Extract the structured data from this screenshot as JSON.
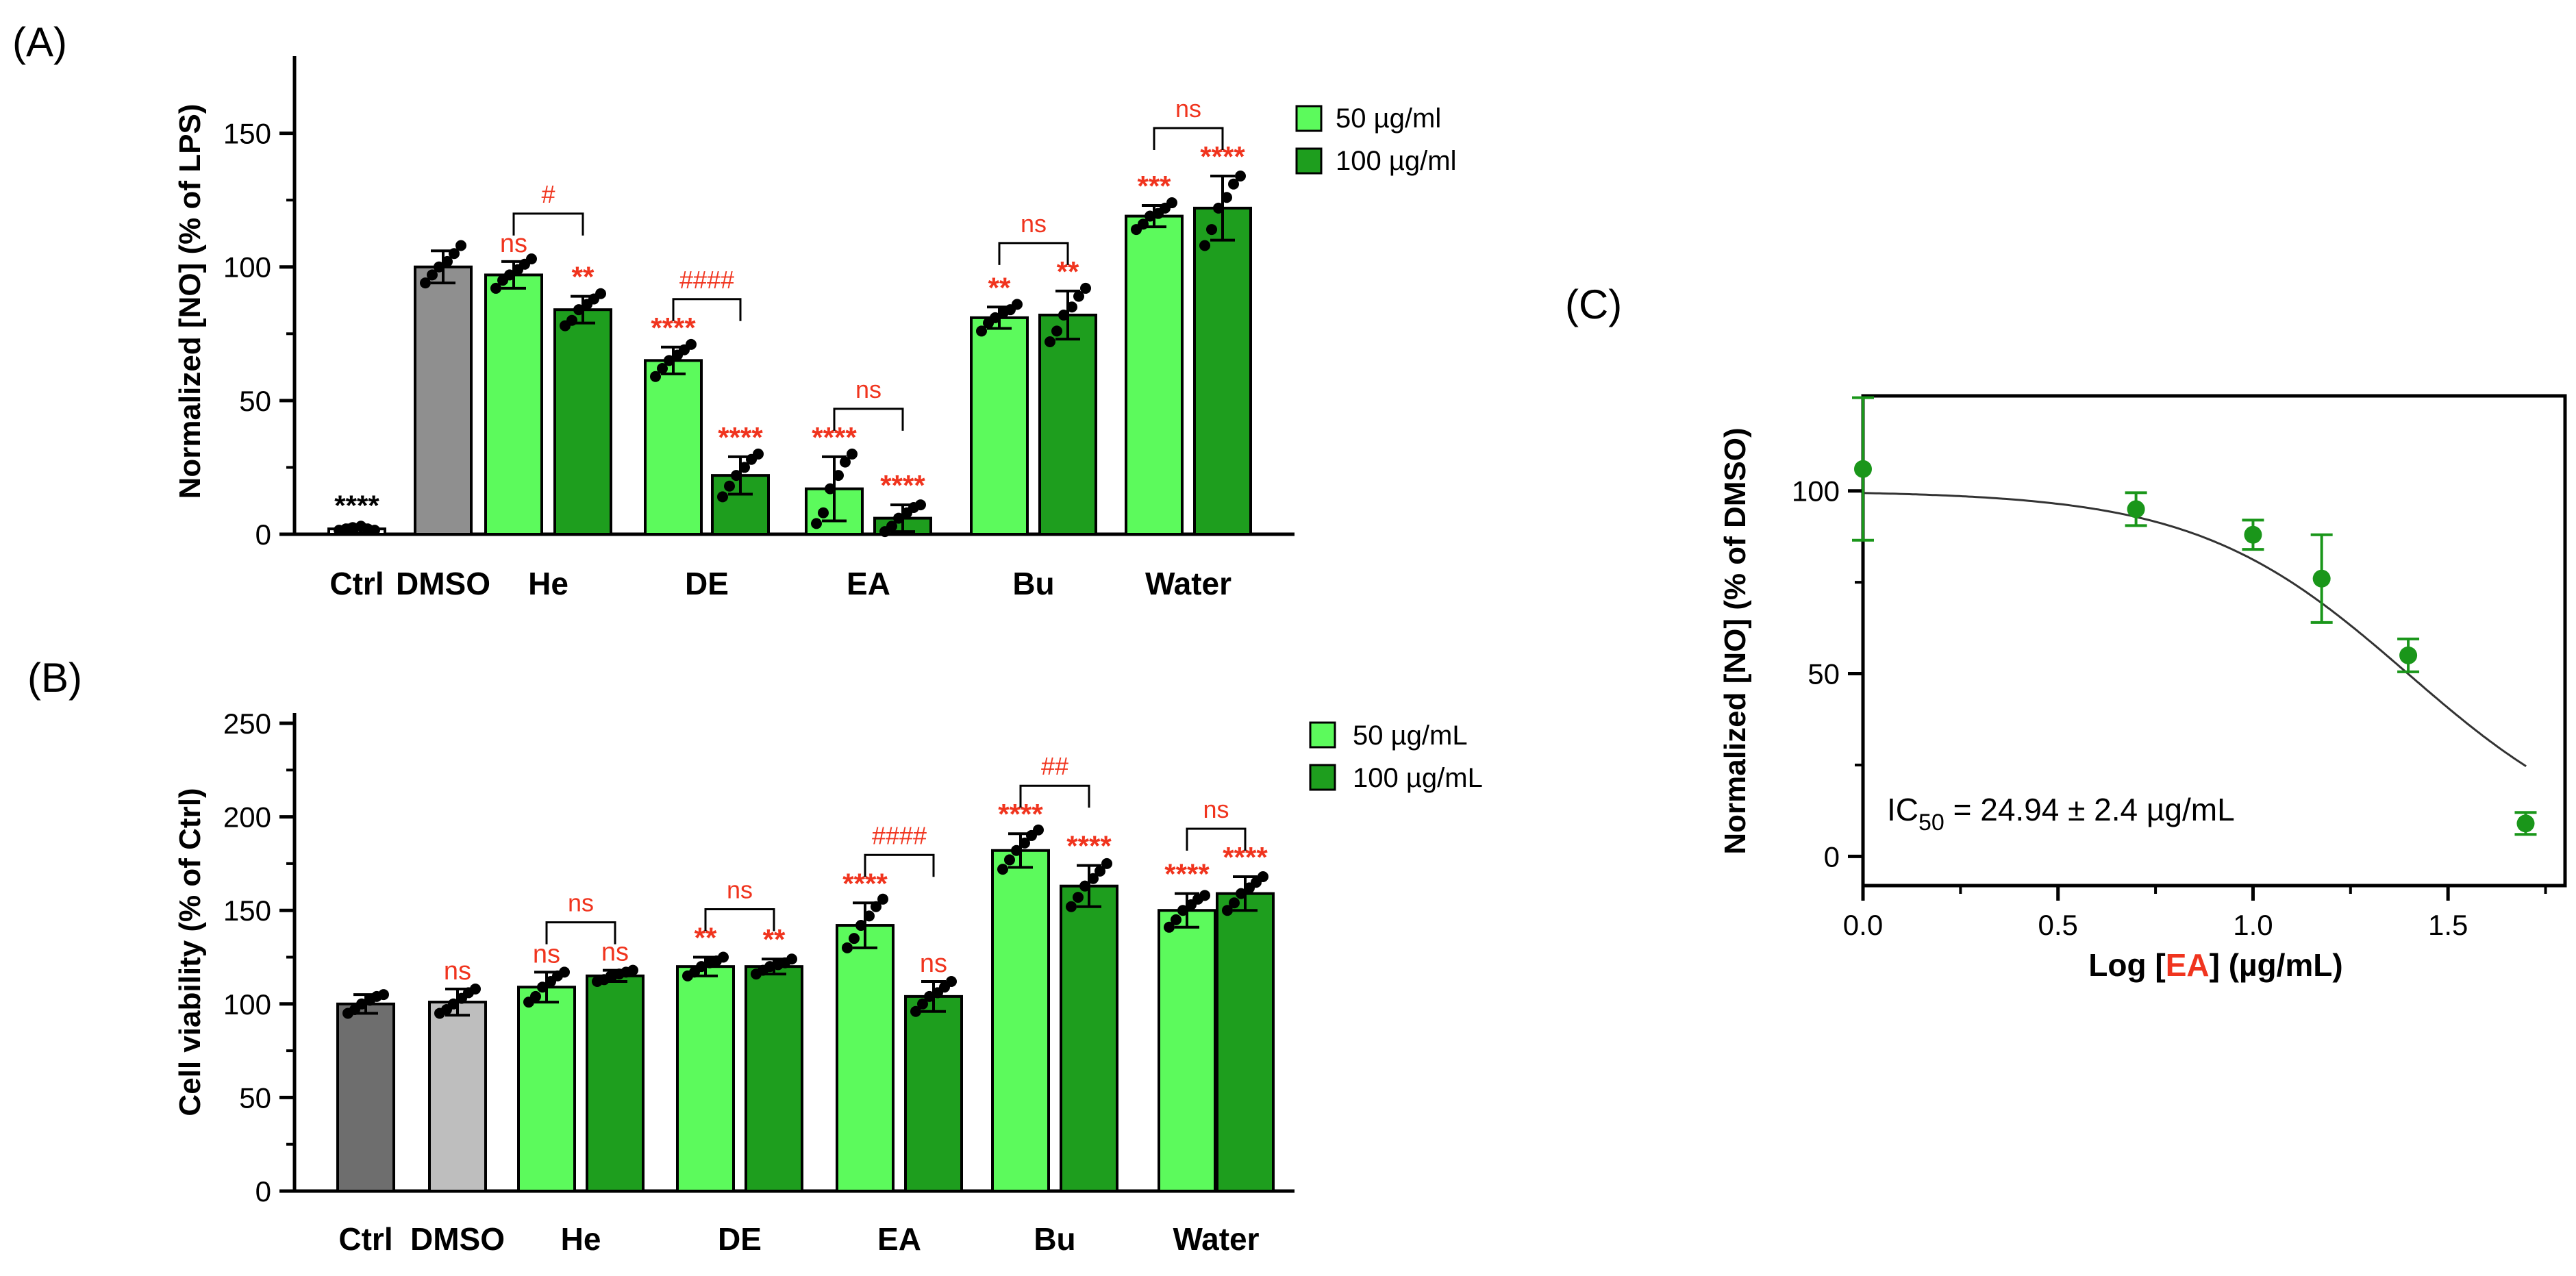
{
  "colors": {
    "light_green": "#5CFA5C",
    "dark_green": "#1E9E1E",
    "gray_dmso_a": "#8F8F8F",
    "gray_ctrl_b": "#6E6E6E",
    "gray_dmso_b": "#BEBEBE",
    "sig_red": "#F0341E",
    "point_green": "#1A961A"
  },
  "chart_data": [
    {
      "id": "A",
      "panel_label": "(A)",
      "type": "bar",
      "ylabel": "Normalized [NO] (% of LPS)",
      "ylim": [
        0,
        175
      ],
      "yticks": [
        0,
        50,
        100,
        150
      ],
      "categories": [
        "Ctrl",
        "DMSO",
        "He",
        "DE",
        "EA",
        "Bu",
        "Water"
      ],
      "legend": [
        "50 µg/ml",
        "100 µg/ml"
      ],
      "bars": [
        {
          "group": "Ctrl",
          "style": "control",
          "value": 2,
          "err": 1.5,
          "pts": [
            1.5,
            2,
            2.5,
            3,
            2,
            1.5
          ],
          "sig": "****",
          "sig_color": "black"
        },
        {
          "group": "DMSO",
          "style": "gray_dmso_a",
          "value": 100,
          "err": 6,
          "pts": [
            94,
            97,
            100,
            102,
            105,
            108
          ],
          "sig": "",
          "sig_color": "red"
        },
        {
          "group": "He",
          "style": "light_green",
          "value": 97,
          "err": 5,
          "pts": [
            92,
            95,
            97,
            99,
            101,
            103
          ],
          "sig": "ns",
          "sig_color": "red"
        },
        {
          "group": "He",
          "style": "dark_green",
          "value": 84,
          "err": 5,
          "pts": [
            78,
            80,
            84,
            86,
            88,
            90
          ],
          "sig": "**",
          "sig_color": "red"
        },
        {
          "group": "DE",
          "style": "light_green",
          "value": 65,
          "err": 5,
          "pts": [
            59,
            62,
            65,
            67,
            69,
            71
          ],
          "sig": "****",
          "sig_color": "red"
        },
        {
          "group": "DE",
          "style": "dark_green",
          "value": 22,
          "err": 7,
          "pts": [
            14,
            18,
            22,
            25,
            28,
            30
          ],
          "sig": "****",
          "sig_color": "red"
        },
        {
          "group": "EA",
          "style": "light_green",
          "value": 17,
          "err": 12,
          "pts": [
            4,
            8,
            17,
            22,
            27,
            30
          ],
          "sig": "****",
          "sig_color": "red"
        },
        {
          "group": "EA",
          "style": "dark_green",
          "value": 6,
          "err": 5,
          "pts": [
            1,
            3,
            6,
            8,
            10,
            11
          ],
          "sig": "****",
          "sig_color": "red"
        },
        {
          "group": "Bu",
          "style": "light_green",
          "value": 81,
          "err": 4,
          "pts": [
            76,
            79,
            81,
            83,
            84,
            86
          ],
          "sig": "**",
          "sig_color": "red"
        },
        {
          "group": "Bu",
          "style": "dark_green",
          "value": 82,
          "err": 9,
          "pts": [
            72,
            76,
            82,
            85,
            89,
            92
          ],
          "sig": "**",
          "sig_color": "red"
        },
        {
          "group": "Water",
          "style": "light_green",
          "value": 119,
          "err": 4,
          "pts": [
            114,
            116,
            119,
            120,
            122,
            124
          ],
          "sig": "***",
          "sig_color": "red"
        },
        {
          "group": "Water",
          "style": "dark_green",
          "value": 122,
          "err": 12,
          "pts": [
            108,
            114,
            122,
            126,
            131,
            134
          ],
          "sig": "****",
          "sig_color": "red"
        }
      ],
      "brackets": [
        {
          "group": "He",
          "label": "#"
        },
        {
          "group": "DE",
          "label": "####"
        },
        {
          "group": "EA",
          "label": "ns"
        },
        {
          "group": "Bu",
          "label": "ns"
        },
        {
          "group": "Water",
          "label": "ns"
        }
      ]
    },
    {
      "id": "B",
      "panel_label": "(B)",
      "type": "bar",
      "ylabel": "Cell viability (% of Ctrl)",
      "ylim": [
        0,
        250
      ],
      "yticks": [
        0,
        50,
        100,
        150,
        200,
        250
      ],
      "categories": [
        "Ctrl",
        "DMSO",
        "He",
        "DE",
        "EA",
        "Bu",
        "Water"
      ],
      "legend": [
        "50 µg/mL",
        "100 µg/mL"
      ],
      "bars": [
        {
          "group": "Ctrl",
          "style": "gray_ctrl_b",
          "value": 100,
          "err": 5,
          "pts": [
            95,
            97,
            100,
            102,
            104,
            105
          ],
          "sig": "",
          "sig_color": "red"
        },
        {
          "group": "DMSO",
          "style": "gray_dmso_b",
          "value": 101,
          "err": 7,
          "pts": [
            95,
            97,
            100,
            103,
            106,
            108
          ],
          "sig": "ns",
          "sig_color": "red"
        },
        {
          "group": "He",
          "style": "light_green",
          "value": 109,
          "err": 8,
          "pts": [
            101,
            104,
            109,
            112,
            115,
            117
          ],
          "sig": "ns",
          "sig_color": "red"
        },
        {
          "group": "He",
          "style": "dark_green",
          "value": 115,
          "err": 3,
          "pts": [
            112,
            113,
            115,
            116,
            117,
            118
          ],
          "sig": "ns",
          "sig_color": "red"
        },
        {
          "group": "DE",
          "style": "light_green",
          "value": 120,
          "err": 5,
          "pts": [
            115,
            117,
            120,
            122,
            123,
            125
          ],
          "sig": "**",
          "sig_color": "red"
        },
        {
          "group": "DE",
          "style": "dark_green",
          "value": 120,
          "err": 4,
          "pts": [
            116,
            118,
            120,
            121,
            122,
            124
          ],
          "sig": "**",
          "sig_color": "red"
        },
        {
          "group": "EA",
          "style": "light_green",
          "value": 142,
          "err": 12,
          "pts": [
            130,
            135,
            142,
            147,
            152,
            156
          ],
          "sig": "****",
          "sig_color": "red"
        },
        {
          "group": "EA",
          "style": "dark_green",
          "value": 104,
          "err": 8,
          "pts": [
            96,
            100,
            104,
            106,
            109,
            112
          ],
          "sig": "ns",
          "sig_color": "red"
        },
        {
          "group": "Bu",
          "style": "light_green",
          "value": 182,
          "err": 9,
          "pts": [
            172,
            177,
            182,
            186,
            190,
            193
          ],
          "sig": "****",
          "sig_color": "red"
        },
        {
          "group": "Bu",
          "style": "dark_green",
          "value": 163,
          "err": 11,
          "pts": [
            152,
            157,
            163,
            167,
            171,
            175
          ],
          "sig": "****",
          "sig_color": "red"
        },
        {
          "group": "Water",
          "style": "light_green",
          "value": 150,
          "err": 9,
          "pts": [
            141,
            145,
            150,
            153,
            156,
            158
          ],
          "sig": "****",
          "sig_color": "red"
        },
        {
          "group": "Water",
          "style": "dark_green",
          "value": 159,
          "err": 9,
          "pts": [
            150,
            154,
            159,
            162,
            165,
            168
          ],
          "sig": "****",
          "sig_color": "red"
        }
      ],
      "brackets": [
        {
          "group": "He",
          "label": "ns"
        },
        {
          "group": "DE",
          "label": "ns"
        },
        {
          "group": "EA",
          "label": "####"
        },
        {
          "group": "Bu",
          "label": "##"
        },
        {
          "group": "Water",
          "label": "ns"
        }
      ]
    },
    {
      "id": "C",
      "panel_label": "(C)",
      "type": "scatter",
      "ylabel": "Normalized [NO] (% of DMSO)",
      "xlabel_parts": [
        "Log [",
        "EA",
        "] (µg/mL)"
      ],
      "xlim": [
        0,
        1.8
      ],
      "ylim": [
        -8,
        126
      ],
      "xticks": [
        0.0,
        0.5,
        1.0,
        1.5
      ],
      "xtick_labels": [
        "0.0",
        "0.5",
        "1.0",
        "1.5"
      ],
      "yticks": [
        0,
        50,
        100
      ],
      "ic50": {
        "prefix": "IC",
        "sub": "50",
        "suffix": " = 24.94 ± 2.4 µg/mL"
      },
      "points": [
        {
          "x": 0.0,
          "y": 106,
          "err": 19.5
        },
        {
          "x": 0.7,
          "y": 95,
          "err": 4.5
        },
        {
          "x": 1.0,
          "y": 88,
          "err": 4
        },
        {
          "x": 1.176,
          "y": 76,
          "err": 12
        },
        {
          "x": 1.398,
          "y": 55,
          "err": 4.5
        },
        {
          "x": 1.699,
          "y": 9,
          "err": 3
        }
      ],
      "fit": {
        "top": 100,
        "bottom": 0,
        "log_ic50": 1.397,
        "hill": 1.6
      }
    }
  ]
}
